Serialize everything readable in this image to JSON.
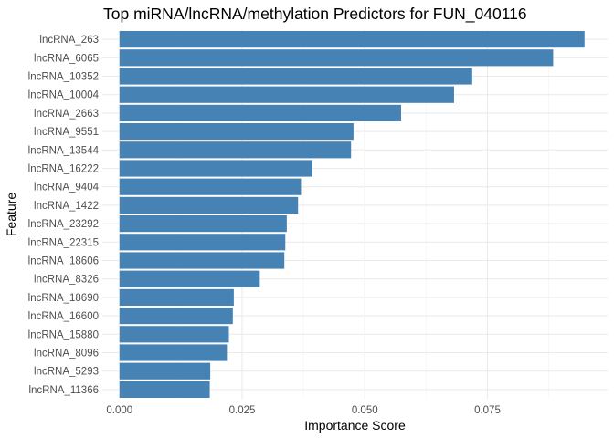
{
  "chart_data": {
    "type": "bar",
    "orientation": "horizontal",
    "title": "Top miRNA/lncRNA/methylation Predictors for FUN_040116",
    "xlabel": "Importance Score",
    "ylabel": "Feature",
    "xlim": [
      -0.0035,
      0.0995
    ],
    "x_ticks": [
      0,
      0.025,
      0.05,
      0.075
    ],
    "x_tick_labels": [
      "0.000",
      "0.025",
      "0.050",
      "0.075"
    ],
    "grid": true,
    "bar_color": "#4682b4",
    "categories": [
      "lncRNA_263",
      "lncRNA_6065",
      "lncRNA_10352",
      "lncRNA_10004",
      "lncRNA_2663",
      "lncRNA_9551",
      "lncRNA_13544",
      "lncRNA_16222",
      "lncRNA_9404",
      "lncRNA_1422",
      "lncRNA_23292",
      "lncRNA_22315",
      "lncRNA_18606",
      "lncRNA_8326",
      "lncRNA_18690",
      "lncRNA_16600",
      "lncRNA_15880",
      "lncRNA_8096",
      "lncRNA_5293",
      "lncRNA_11366"
    ],
    "values": [
      0.0948,
      0.0884,
      0.0719,
      0.0682,
      0.0574,
      0.0477,
      0.0472,
      0.0393,
      0.037,
      0.0364,
      0.0341,
      0.0338,
      0.0336,
      0.0286,
      0.0233,
      0.0231,
      0.0223,
      0.0219,
      0.0185,
      0.0184
    ]
  }
}
